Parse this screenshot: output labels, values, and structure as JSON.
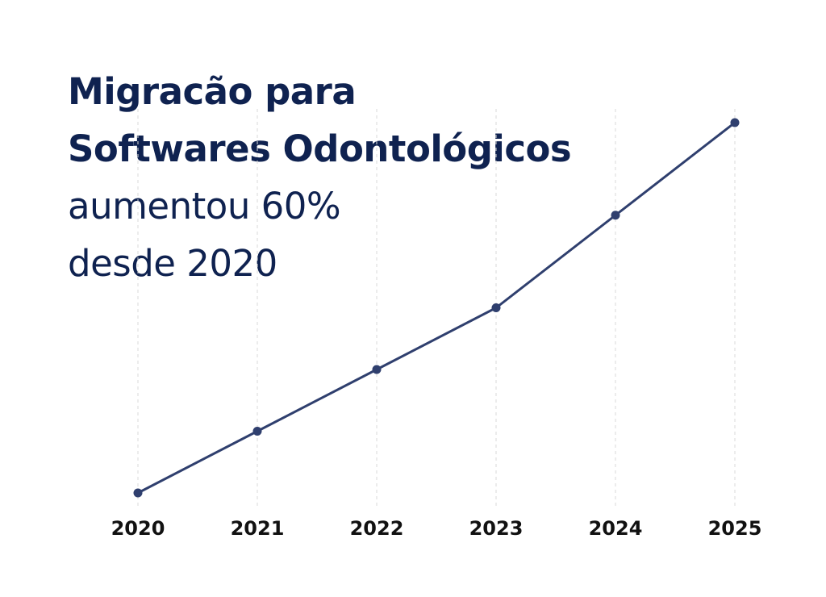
{
  "title_lines": [
    {
      "text": "Migracão para",
      "weight": "bold"
    },
    {
      "text": "Softwares Odontológicos",
      "weight": "bold"
    },
    {
      "text": "aumentou 60%",
      "weight": "regular"
    },
    {
      "text": "desde 2020",
      "weight": "regular"
    }
  ],
  "chart_data": {
    "type": "line",
    "x": [
      "2020",
      "2021",
      "2022",
      "2023",
      "2024",
      "2025"
    ],
    "series": [
      {
        "values": [
          0,
          10,
          20,
          30,
          45,
          60
        ]
      }
    ],
    "ylim": [
      0,
      60
    ],
    "grid": {
      "vertical": true,
      "style": "dashed"
    },
    "xlabel": "",
    "ylabel": "",
    "colors": {
      "line": "#2f3f6e",
      "grid": "#d9d9d9",
      "title": "#0f2250",
      "tick_labels": "#111111"
    }
  }
}
